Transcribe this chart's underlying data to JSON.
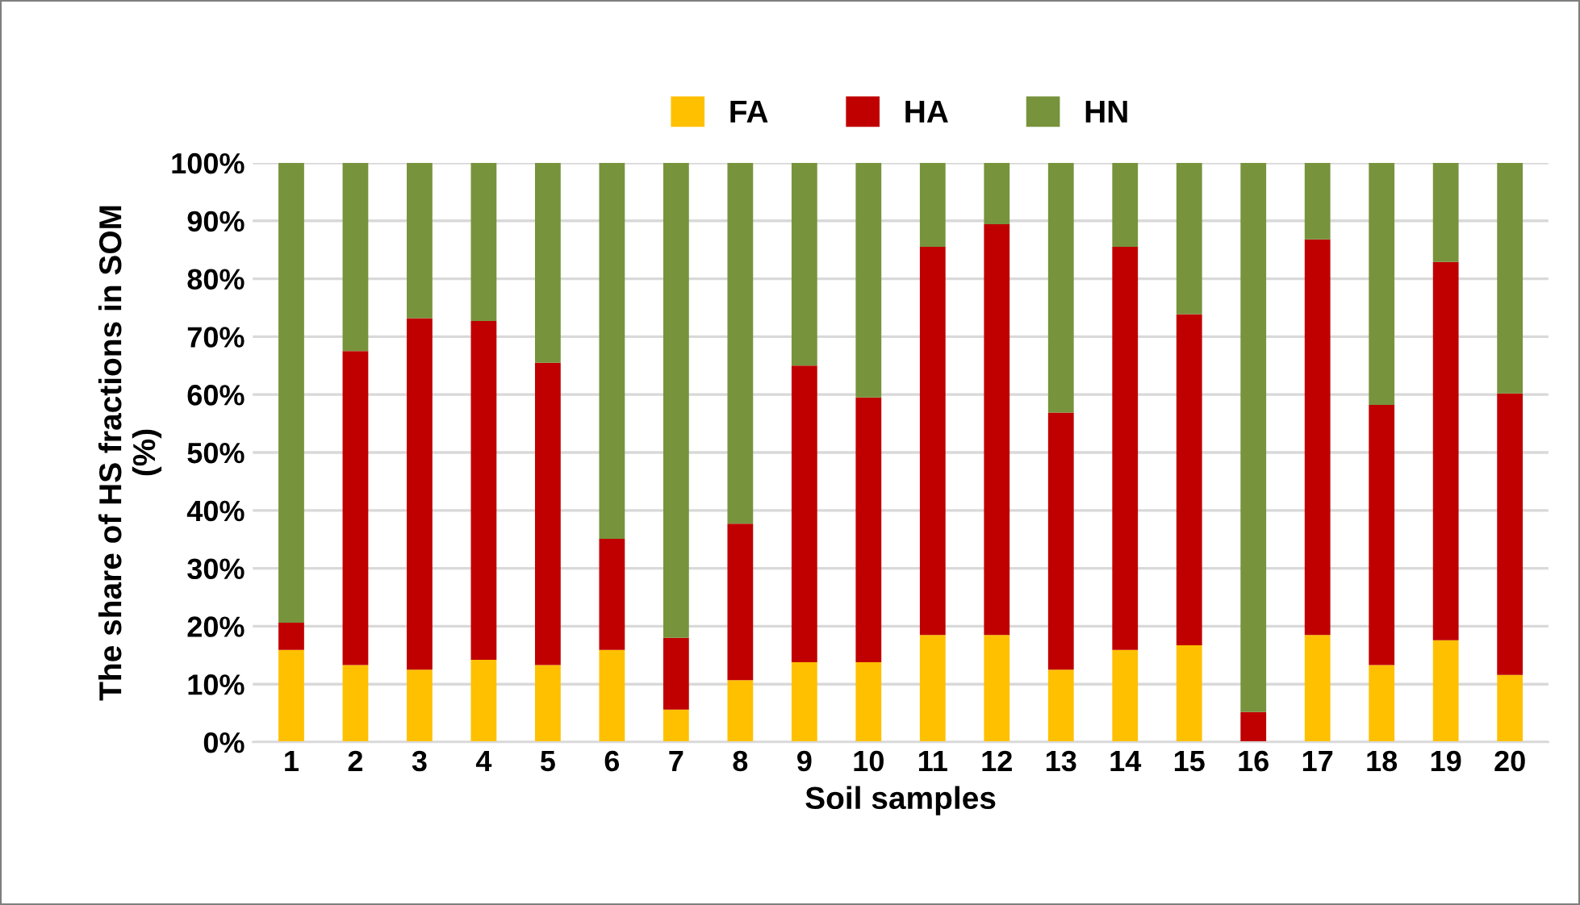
{
  "chart_data": {
    "type": "bar",
    "stacked": true,
    "xlabel": "Soil samples",
    "ylabel": "The share of HS fractions in SOM\n(%)",
    "categories": [
      "1",
      "2",
      "3",
      "4",
      "5",
      "6",
      "7",
      "8",
      "9",
      "10",
      "11",
      "12",
      "13",
      "14",
      "15",
      "16",
      "17",
      "18",
      "19",
      "20"
    ],
    "series": [
      {
        "name": "FA",
        "color": "#ffc000",
        "values": [
          15.9,
          13.3,
          12.5,
          14.2,
          13.3,
          15.9,
          5.6,
          10.7,
          13.8,
          13.8,
          18.5,
          18.5,
          12.5,
          15.9,
          16.7,
          0,
          18.5,
          13.3,
          17.6,
          11.6
        ]
      },
      {
        "name": "HA",
        "color": "#c00000",
        "values": [
          4.7,
          54.2,
          60.7,
          58.5,
          52.2,
          19.2,
          12.4,
          27.0,
          51.2,
          45.7,
          67.0,
          70.9,
          44.4,
          69.6,
          57.2,
          5.2,
          68.3,
          44.9,
          65.3,
          48.6
        ]
      },
      {
        "name": "HN",
        "color": "#77933c",
        "values": [
          79.4,
          32.5,
          26.8,
          27.3,
          34.5,
          64.9,
          82.0,
          62.3,
          35.0,
          40.5,
          14.5,
          10.6,
          43.1,
          14.5,
          26.1,
          94.8,
          13.2,
          41.8,
          17.1,
          39.8
        ]
      }
    ],
    "ylim": [
      0,
      100
    ],
    "yticks": [
      {
        "value": 0,
        "label": "0%"
      },
      {
        "value": 10,
        "label": "10%"
      },
      {
        "value": 20,
        "label": "20%"
      },
      {
        "value": 30,
        "label": "30%"
      },
      {
        "value": 40,
        "label": "40%"
      },
      {
        "value": 50,
        "label": "50%"
      },
      {
        "value": 60,
        "label": "60%"
      },
      {
        "value": 70,
        "label": "70%"
      },
      {
        "value": 80,
        "label": "80%"
      },
      {
        "value": 90,
        "label": "90%"
      },
      {
        "value": 100,
        "label": "100%"
      }
    ],
    "grid": "y",
    "legend": "top"
  }
}
